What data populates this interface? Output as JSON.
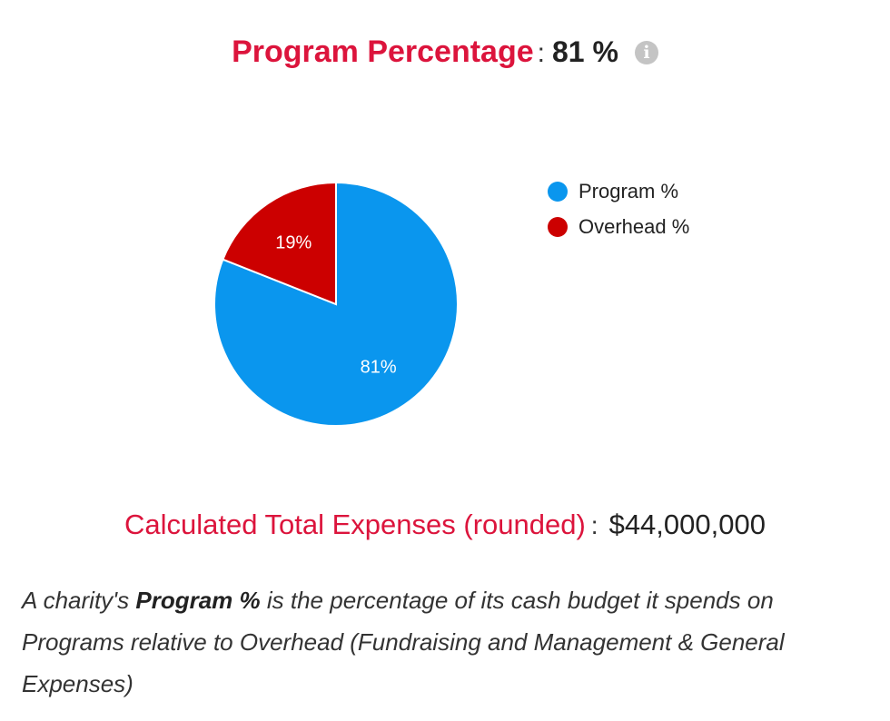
{
  "header": {
    "label": "Program Percentage",
    "colon": ":",
    "value": "81 %",
    "info_icon": "info-icon"
  },
  "chart_data": {
    "type": "pie",
    "slices": [
      {
        "label": "Program %",
        "value": 81,
        "data_label": "81%",
        "color": "#0a96ee"
      },
      {
        "label": "Overhead %",
        "value": 19,
        "data_label": "19%",
        "color": "#cc0000"
      }
    ],
    "legend_position": "right"
  },
  "legend": {
    "items": [
      {
        "label": "Program %",
        "color": "#0a96ee"
      },
      {
        "label": "Overhead %",
        "color": "#cc0000"
      }
    ]
  },
  "expenses": {
    "label": "Calculated Total Expenses (rounded)",
    "colon": ":",
    "value": "$44,000,000"
  },
  "description": {
    "prefix": "A charity's ",
    "bold": "Program %",
    "suffix": " is the percentage of its cash budget it spends on Programs relative to Overhead (Fundraising and Management & General Expenses)"
  }
}
